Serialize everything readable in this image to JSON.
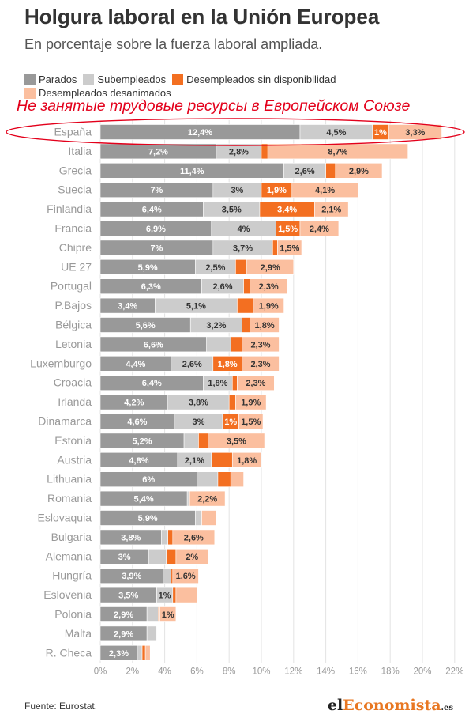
{
  "header": {
    "title": "Holgura laboral en la Unión Europea",
    "subtitle": "En porcentaje sobre la fuerza laboral ampliada."
  },
  "annotation": "Не занятые трудовые ресурсы в Европейском Союзе",
  "footer": {
    "source": "Fuente: Eurostat.",
    "brand_prefix": "el",
    "brand_accent": "Economista",
    "brand_tld": ".es"
  },
  "chart_data": {
    "type": "bar",
    "orientation": "horizontal",
    "stacked": true,
    "title": "Holgura laboral en la Unión Europea",
    "subtitle": "En porcentaje sobre la fuerza laboral ampliada.",
    "xlabel": "",
    "ylabel": "",
    "xlim": [
      0,
      22
    ],
    "x_ticks": [
      "0%",
      "2%",
      "4%",
      "6%",
      "8%",
      "10%",
      "12%",
      "14%",
      "16%",
      "18%",
      "20%",
      "22%"
    ],
    "grid": true,
    "legend_position": "top-left",
    "highlight": "España",
    "categories": [
      "España",
      "Italia",
      "Grecia",
      "Suecia",
      "Finlandia",
      "Francia",
      "Chipre",
      "UE 27",
      "Portugal",
      "P.Bajos",
      "Bélgica",
      "Letonia",
      "Luxemburgo",
      "Croacia",
      "Irlanda",
      "Dinamarca",
      "Estonia",
      "Austria",
      "Lithuania",
      "Romania",
      "Eslovaquia",
      "Bulgaria",
      "Alemania",
      "Hungría",
      "Eslovenia",
      "Polonia",
      "Malta",
      "R. Checa"
    ],
    "series": [
      {
        "name": "Parados",
        "color": "#999999",
        "label_color": "#ffffff",
        "values": [
          12.4,
          7.2,
          11.4,
          7.0,
          6.4,
          6.9,
          7.0,
          5.9,
          6.3,
          3.4,
          5.6,
          6.6,
          4.4,
          6.4,
          4.2,
          4.6,
          5.2,
          4.8,
          6.0,
          5.4,
          5.9,
          3.8,
          3.0,
          3.9,
          3.5,
          2.9,
          2.9,
          2.3
        ],
        "labels": [
          "12,4%",
          "7,2%",
          "11,4%",
          "7%",
          "6,4%",
          "6,9%",
          "7%",
          "5,9%",
          "6,3%",
          "3,4%",
          "5,6%",
          "6,6%",
          "4,4%",
          "6,4%",
          "4,2%",
          "4,6%",
          "5,2%",
          "4,8%",
          "6%",
          "5,4%",
          "5,9%",
          "3,8%",
          "3%",
          "3,9%",
          "3,5%",
          "2,9%",
          "2,9%",
          "2,3%"
        ]
      },
      {
        "name": "Subempleados",
        "color": "#cccccc",
        "label_color": "#333333",
        "values": [
          4.5,
          2.8,
          2.6,
          3.0,
          3.5,
          4.0,
          3.7,
          2.5,
          2.6,
          5.1,
          3.2,
          1.5,
          2.6,
          1.8,
          3.8,
          3.0,
          0.9,
          2.1,
          1.3,
          0.1,
          0.4,
          0.4,
          1.1,
          0.5,
          1.0,
          0.7,
          0.6,
          0.3
        ],
        "labels": [
          "4,5%",
          "2,8%",
          "2,6%",
          "3%",
          "3,5%",
          "4%",
          "3,7%",
          "2,5%",
          "2,6%",
          "5,1%",
          "3,2%",
          "",
          "2,6%",
          "1,8%",
          "3,8%",
          "3%",
          "",
          "2,1%",
          "",
          "",
          "",
          "",
          "",
          "",
          "1%",
          "",
          "",
          ""
        ]
      },
      {
        "name": "Desempleados sin disponibilidad",
        "color": "#f36f21",
        "label_color": "#ffffff",
        "values": [
          1.0,
          0.4,
          0.6,
          1.9,
          3.4,
          1.5,
          0.3,
          0.7,
          0.4,
          1.0,
          0.5,
          0.7,
          1.8,
          0.3,
          0.4,
          1.0,
          0.6,
          1.3,
          0.8,
          0.05,
          0.0,
          0.3,
          0.6,
          0.1,
          0.2,
          0.1,
          0.0,
          0.2
        ],
        "labels": [
          "1%",
          "",
          "",
          "1,9%",
          "3,4%",
          "1,5%",
          "",
          "",
          "",
          "",
          "",
          "",
          "1,8%",
          "",
          "",
          "1%",
          "",
          "",
          "",
          "",
          "",
          "",
          "",
          "",
          "",
          "",
          "",
          ""
        ]
      },
      {
        "name": "Desempleados desanimados",
        "color": "#fbbf9f",
        "label_color": "#333333",
        "values": [
          3.3,
          8.7,
          2.9,
          4.1,
          2.1,
          2.4,
          1.5,
          2.9,
          2.3,
          1.9,
          1.8,
          2.3,
          2.3,
          2.3,
          1.9,
          1.5,
          3.5,
          1.8,
          0.8,
          2.2,
          0.9,
          2.6,
          2.0,
          1.6,
          1.3,
          1.0,
          0.0,
          0.3
        ],
        "labels": [
          "3,3%",
          "8,7%",
          "2,9%",
          "4,1%",
          "2,1%",
          "2,4%",
          "1,5%",
          "2,9%",
          "2,3%",
          "1,9%",
          "1,8%",
          "2,3%",
          "2,3%",
          "2,3%",
          "1,9%",
          "1,5%",
          "3,5%",
          "1,8%",
          "",
          "2,2%",
          "",
          "2,6%",
          "2%",
          "1,6%",
          "",
          "1%",
          "",
          ""
        ]
      }
    ]
  }
}
